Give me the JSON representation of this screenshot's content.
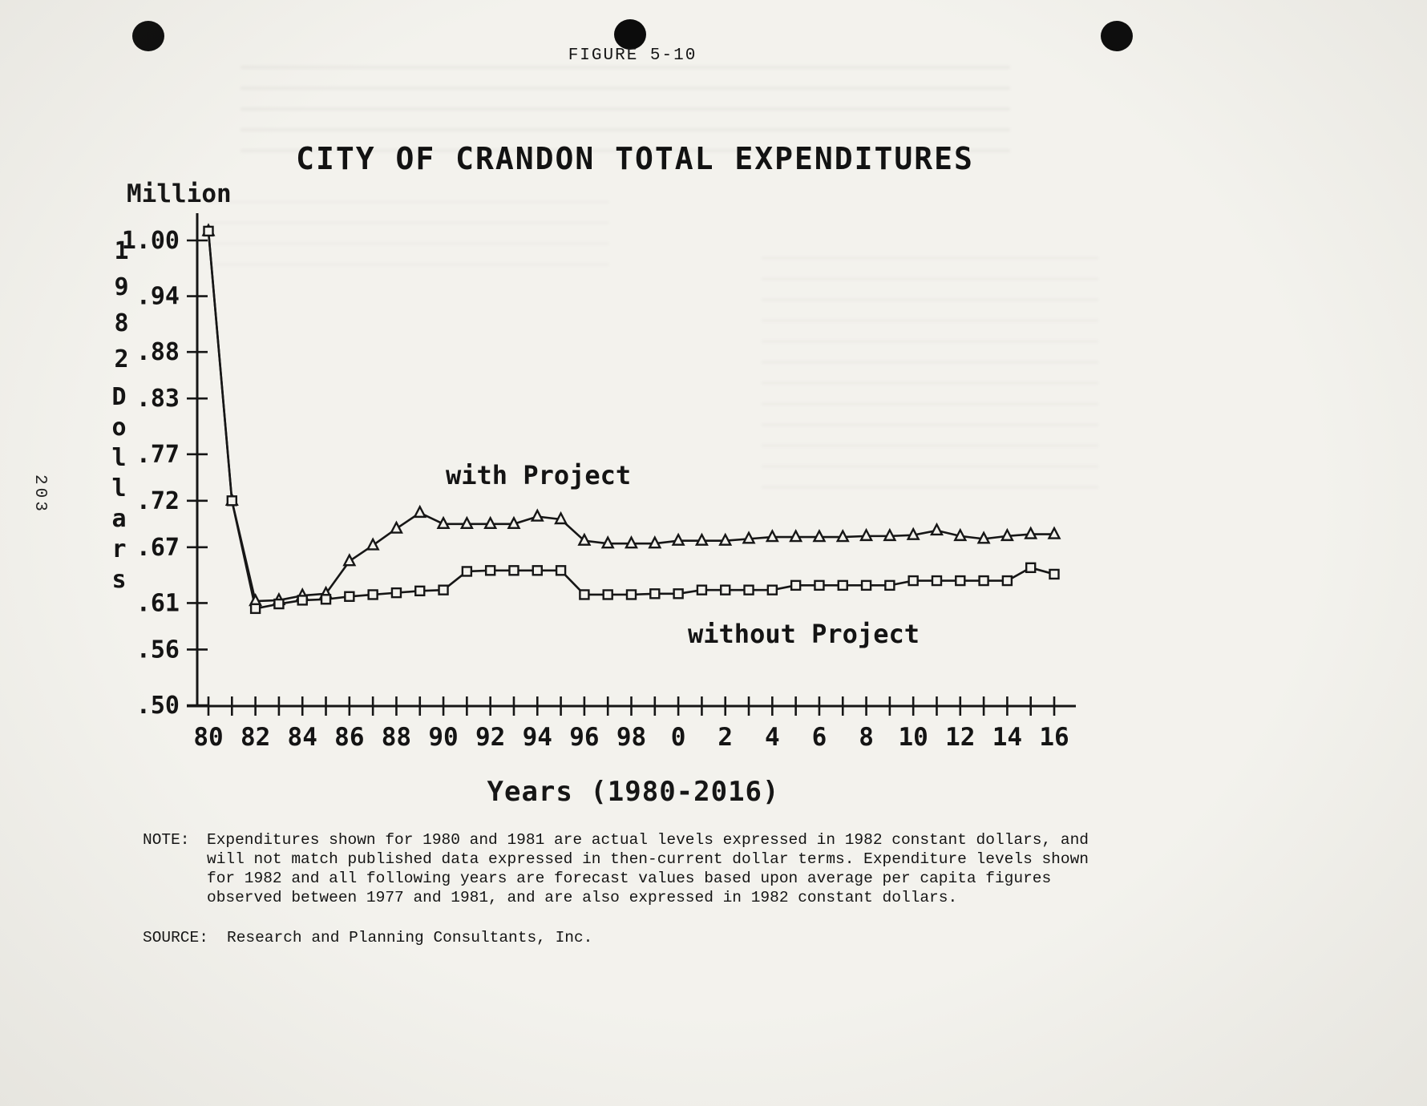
{
  "page": {
    "figure_label": "FIGURE 5-10",
    "page_number": "203",
    "note_label": "NOTE:",
    "note_text": "Expenditures shown for 1980 and 1981 are actual levels expressed in 1982 constant dollars, and will not match published data expressed in then-current dollar terms.  Expenditure levels shown for 1982 and all following years are forecast values based upon average per capita figures observed between 1977 and 1981, and are also expressed in 1982 constant dollars.",
    "source_label": "SOURCE:",
    "source_text": "Research and Planning Consultants, Inc."
  },
  "chart_data": {
    "type": "line",
    "title": "CITY OF CRANDON TOTAL EXPENDITURES",
    "xlabel": "Years (1980-2016)",
    "ylabel_unit": "Million",
    "ylabel_vertical_1": "1982",
    "ylabel_vertical_2": "Dollars",
    "ylim": [
      0.5,
      1.0
    ],
    "grid": false,
    "legend_position": "inline-annotations",
    "y_ticks": [
      1.0,
      0.94,
      0.88,
      0.83,
      0.77,
      0.72,
      0.67,
      0.61,
      0.56,
      0.5
    ],
    "y_tick_labels": [
      "1.00",
      ".94",
      ".88",
      ".83",
      ".77",
      ".72",
      ".67",
      ".61",
      ".56",
      ".50"
    ],
    "x_tick_labels": [
      "80",
      "82",
      "84",
      "86",
      "88",
      "90",
      "92",
      "94",
      "96",
      "98",
      "0",
      "2",
      "4",
      "6",
      "8",
      "10",
      "12",
      "14",
      "16"
    ],
    "years": [
      1980,
      1981,
      1982,
      1983,
      1984,
      1985,
      1986,
      1987,
      1988,
      1989,
      1990,
      1991,
      1992,
      1993,
      1994,
      1995,
      1996,
      1997,
      1998,
      1999,
      2000,
      2001,
      2002,
      2003,
      2004,
      2005,
      2006,
      2007,
      2008,
      2009,
      2010,
      2011,
      2012,
      2013,
      2014,
      2015,
      2016
    ],
    "series": [
      {
        "name": "with Project",
        "marker": "triangle",
        "values": [
          1.01,
          0.72,
          0.612,
          0.613,
          0.618,
          0.62,
          0.655,
          0.672,
          0.69,
          0.707,
          0.695,
          0.695,
          0.695,
          0.695,
          0.703,
          0.7,
          0.677,
          0.674,
          0.674,
          0.674,
          0.677,
          0.677,
          0.677,
          0.679,
          0.681,
          0.681,
          0.681,
          0.681,
          0.682,
          0.682,
          0.683,
          0.688,
          0.682,
          0.679,
          0.682,
          0.684,
          0.684
        ]
      },
      {
        "name": "without Project",
        "marker": "square",
        "values": [
          1.01,
          0.72,
          0.604,
          0.609,
          0.613,
          0.614,
          0.617,
          0.619,
          0.621,
          0.623,
          0.624,
          0.644,
          0.645,
          0.645,
          0.645,
          0.645,
          0.619,
          0.619,
          0.619,
          0.62,
          0.62,
          0.624,
          0.624,
          0.624,
          0.624,
          0.629,
          0.629,
          0.629,
          0.629,
          0.629,
          0.634,
          0.634,
          0.634,
          0.634,
          0.634,
          0.648,
          0.641
        ]
      }
    ]
  }
}
